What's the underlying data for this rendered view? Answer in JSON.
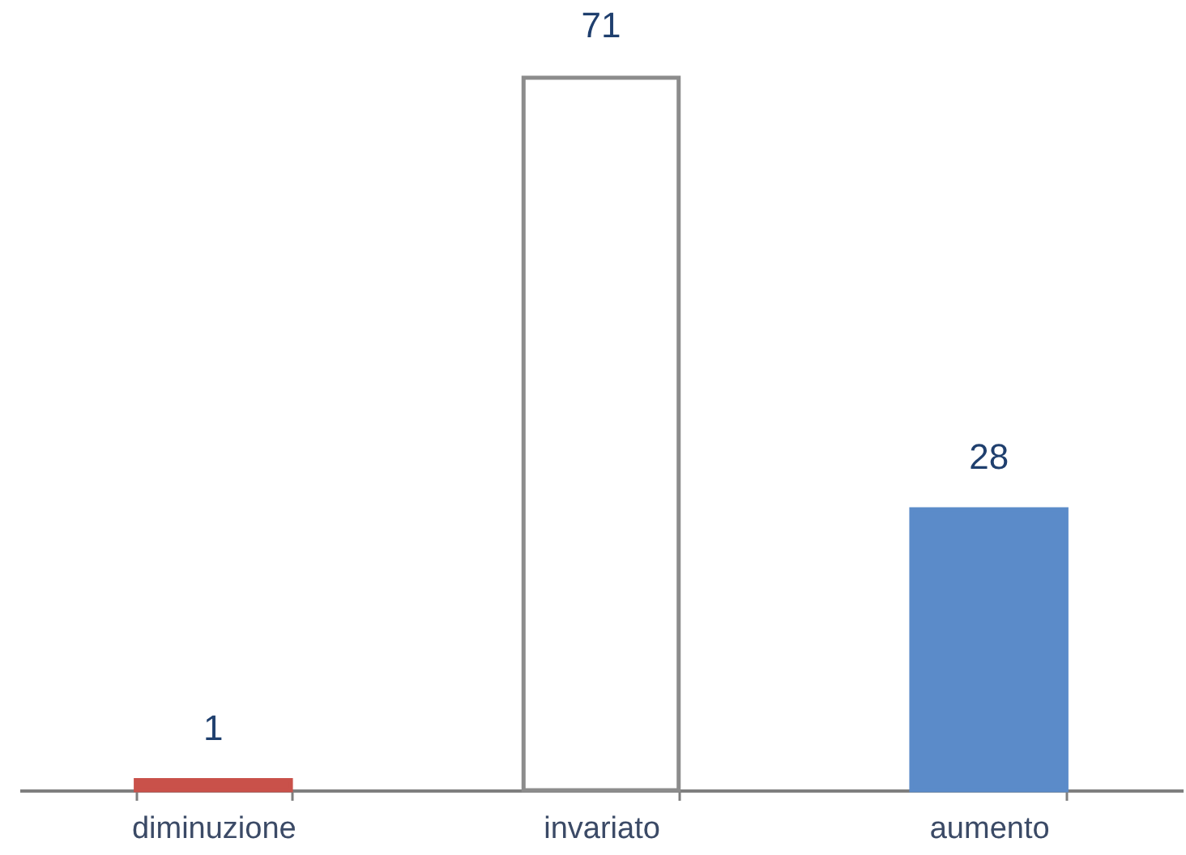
{
  "chart_data": {
    "type": "bar",
    "categories": [
      "diminuzione",
      "invariato",
      "aumento"
    ],
    "values": [
      1,
      71,
      28
    ],
    "colors": [
      "#c9514a",
      "#ffffff",
      "#5b8bc9"
    ],
    "data_labels": true
  }
}
